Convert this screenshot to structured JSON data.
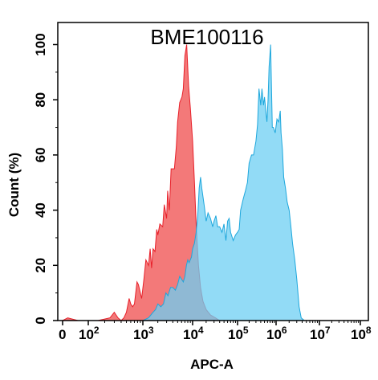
{
  "chart_data": {
    "type": "area",
    "title": "BME100116",
    "xlabel": "APC-A",
    "ylabel": "Count  (%)",
    "x_scale": "log",
    "xlim": [
      0,
      100000000
    ],
    "ylim": [
      0,
      108
    ],
    "grid": false,
    "x_ticks": [
      {
        "value": 0,
        "base": "0",
        "exp": ""
      },
      {
        "value": 100,
        "base": "10",
        "exp": "2"
      },
      {
        "value": 1000,
        "base": "10",
        "exp": "3"
      },
      {
        "value": 10000,
        "base": "10",
        "exp": "4"
      },
      {
        "value": 100000,
        "base": "10",
        "exp": "5"
      },
      {
        "value": 1000000,
        "base": "10",
        "exp": "6"
      },
      {
        "value": 10000000,
        "base": "10",
        "exp": "7"
      },
      {
        "value": 100000000,
        "base": "10",
        "exp": "8"
      }
    ],
    "y_ticks": [
      "0",
      "20",
      "40",
      "60",
      "80",
      "100"
    ],
    "series": [
      {
        "color": "#e8202a",
        "fill": "#f27272",
        "points": [
          [
            0,
            0
          ],
          [
            20,
            1
          ],
          [
            60,
            0
          ],
          [
            150,
            0
          ],
          [
            250,
            1
          ],
          [
            300,
            3
          ],
          [
            350,
            1
          ],
          [
            400,
            0
          ],
          [
            450,
            1
          ],
          [
            500,
            3
          ],
          [
            560,
            8
          ],
          [
            600,
            6
          ],
          [
            650,
            5
          ],
          [
            700,
            6
          ],
          [
            780,
            14
          ],
          [
            830,
            13
          ],
          [
            900,
            10
          ],
          [
            950,
            8
          ],
          [
            1050,
            15
          ],
          [
            1150,
            22
          ],
          [
            1300,
            20
          ],
          [
            1400,
            26
          ],
          [
            1500,
            19
          ],
          [
            1600,
            26
          ],
          [
            1750,
            25
          ],
          [
            1900,
            33
          ],
          [
            2000,
            31
          ],
          [
            2200,
            35
          ],
          [
            2500,
            34
          ],
          [
            2700,
            42
          ],
          [
            3000,
            37
          ],
          [
            3150,
            47
          ],
          [
            3400,
            40
          ],
          [
            3700,
            55
          ],
          [
            4000,
            55
          ],
          [
            4300,
            55
          ],
          [
            4700,
            63
          ],
          [
            5000,
            72
          ],
          [
            5500,
            79
          ],
          [
            6100,
            81
          ],
          [
            6500,
            84
          ],
          [
            7000,
            96
          ],
          [
            7600,
            100
          ],
          [
            8300,
            85
          ],
          [
            9000,
            77
          ],
          [
            10000,
            65
          ],
          [
            11000,
            50
          ],
          [
            12000,
            35
          ],
          [
            13500,
            20
          ],
          [
            15000,
            12
          ],
          [
            17000,
            7
          ],
          [
            20000,
            4
          ],
          [
            25000,
            2
          ],
          [
            32000,
            1
          ],
          [
            40000,
            0
          ],
          [
            100000000,
            0
          ]
        ]
      },
      {
        "color": "#1ea7dc",
        "fill": "#6ecff3",
        "points": [
          [
            1000,
            0
          ],
          [
            1300,
            1
          ],
          [
            1600,
            3
          ],
          [
            1800,
            4
          ],
          [
            2000,
            6
          ],
          [
            2300,
            5
          ],
          [
            2600,
            6
          ],
          [
            2900,
            10
          ],
          [
            3200,
            9
          ],
          [
            3600,
            12
          ],
          [
            4000,
            12
          ],
          [
            4500,
            11
          ],
          [
            5000,
            13
          ],
          [
            5500,
            16
          ],
          [
            6000,
            15
          ],
          [
            6500,
            14
          ],
          [
            7000,
            16
          ],
          [
            7500,
            20
          ],
          [
            8000,
            22
          ],
          [
            8500,
            21
          ],
          [
            9500,
            23
          ],
          [
            10000,
            26
          ],
          [
            11000,
            28
          ],
          [
            12000,
            32
          ],
          [
            13000,
            38
          ],
          [
            14000,
            48
          ],
          [
            15000,
            52
          ],
          [
            16000,
            48
          ],
          [
            18000,
            42
          ],
          [
            20000,
            36
          ],
          [
            22000,
            39
          ],
          [
            25000,
            37
          ],
          [
            28000,
            34
          ],
          [
            30000,
            36
          ],
          [
            33000,
            38
          ],
          [
            36000,
            34
          ],
          [
            40000,
            34
          ],
          [
            45000,
            32
          ],
          [
            50000,
            35
          ],
          [
            55000,
            29
          ],
          [
            60000,
            36
          ],
          [
            65000,
            37
          ],
          [
            70000,
            32
          ],
          [
            80000,
            29
          ],
          [
            90000,
            31
          ],
          [
            100000,
            32
          ],
          [
            110000,
            33
          ],
          [
            120000,
            40
          ],
          [
            140000,
            44
          ],
          [
            160000,
            47
          ],
          [
            180000,
            50
          ],
          [
            200000,
            57
          ],
          [
            230000,
            60
          ],
          [
            260000,
            60
          ],
          [
            300000,
            65
          ],
          [
            330000,
            71
          ],
          [
            360000,
            84
          ],
          [
            400000,
            78
          ],
          [
            430000,
            84
          ],
          [
            470000,
            78
          ],
          [
            500000,
            81
          ],
          [
            540000,
            76
          ],
          [
            580000,
            72
          ],
          [
            620000,
            80
          ],
          [
            660000,
            92
          ],
          [
            720000,
            100
          ],
          [
            800000,
            70
          ],
          [
            850000,
            70
          ],
          [
            900000,
            69
          ],
          [
            950000,
            68
          ],
          [
            1050000,
            73
          ],
          [
            1150000,
            72
          ],
          [
            1250000,
            76
          ],
          [
            1300000,
            68
          ],
          [
            1400000,
            62
          ],
          [
            1500000,
            52
          ],
          [
            1650000,
            48
          ],
          [
            1800000,
            43
          ],
          [
            2000000,
            40
          ],
          [
            2200000,
            34
          ],
          [
            2400000,
            28
          ],
          [
            2700000,
            22
          ],
          [
            3000000,
            15
          ],
          [
            3400000,
            5
          ],
          [
            3800000,
            1
          ],
          [
            4500000,
            0
          ],
          [
            100000000,
            0
          ]
        ]
      }
    ]
  }
}
